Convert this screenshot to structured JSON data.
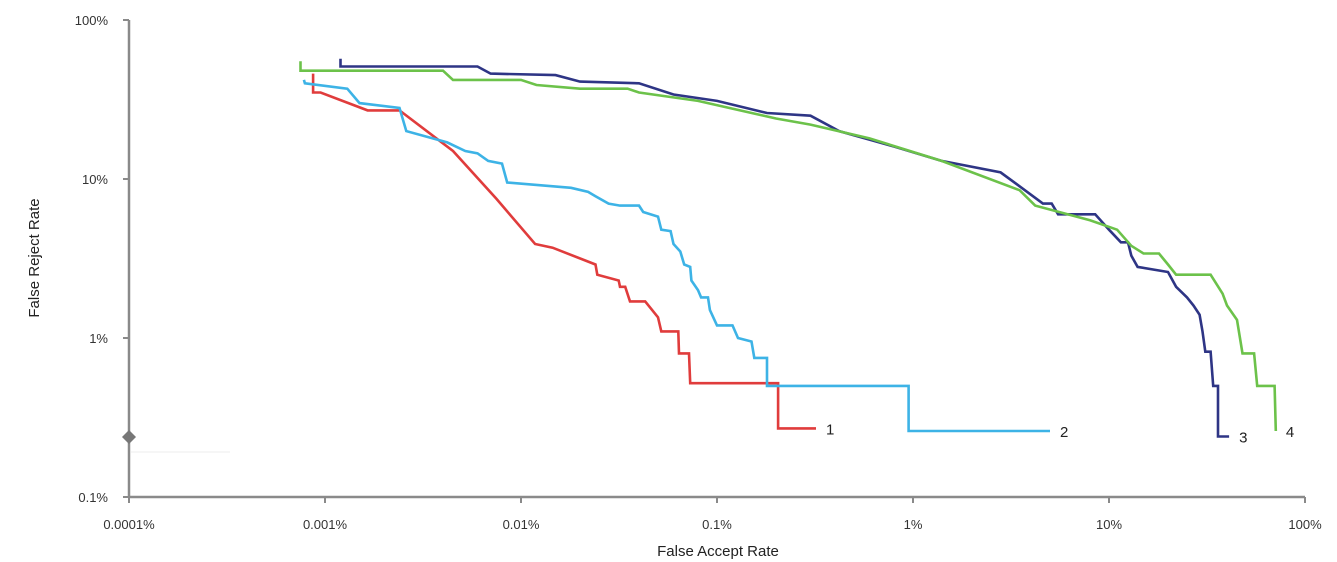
{
  "chart_data": {
    "type": "line",
    "xlabel": "False Accept Rate",
    "ylabel": "False Reject Rate",
    "xscale": "log",
    "yscale": "log",
    "xlim": [
      0.0001,
      100
    ],
    "ylim": [
      0.1,
      100
    ],
    "xticks": [
      {
        "value": 0.0001,
        "label": "0.0001%"
      },
      {
        "value": 0.001,
        "label": "0.001%"
      },
      {
        "value": 0.01,
        "label": "0.01%"
      },
      {
        "value": 0.1,
        "label": "0.1%"
      },
      {
        "value": 1,
        "label": "1%"
      },
      {
        "value": 10,
        "label": "10%"
      },
      {
        "value": 100,
        "label": "100%"
      }
    ],
    "yticks": [
      {
        "value": 0.1,
        "label": "0.1%"
      },
      {
        "value": 1,
        "label": "1%"
      },
      {
        "value": 10,
        "label": "10%"
      },
      {
        "value": 100,
        "label": "100%"
      }
    ],
    "grid": false,
    "series": [
      {
        "name": "1",
        "color": "#e03c3c",
        "points": [
          [
            0.00087,
            46
          ],
          [
            0.00087,
            35
          ],
          [
            0.00095,
            35
          ],
          [
            0.00165,
            27
          ],
          [
            0.0024,
            27
          ],
          [
            0.0045,
            15
          ],
          [
            0.0075,
            7.5
          ],
          [
            0.0118,
            3.9
          ],
          [
            0.0145,
            3.7
          ],
          [
            0.024,
            2.9
          ],
          [
            0.0245,
            2.5
          ],
          [
            0.0315,
            2.3
          ],
          [
            0.032,
            2.1
          ],
          [
            0.034,
            2.1
          ],
          [
            0.036,
            1.7
          ],
          [
            0.043,
            1.7
          ],
          [
            0.05,
            1.35
          ],
          [
            0.052,
            1.1
          ],
          [
            0.0635,
            1.1
          ],
          [
            0.064,
            0.8
          ],
          [
            0.072,
            0.8
          ],
          [
            0.073,
            0.52
          ],
          [
            0.165,
            0.52
          ],
          [
            0.205,
            0.52
          ],
          [
            0.205,
            0.27
          ],
          [
            0.32,
            0.27
          ]
        ]
      },
      {
        "name": "2",
        "color": "#3db3e6",
        "points": [
          [
            0.00078,
            42
          ],
          [
            0.00079,
            40
          ],
          [
            0.0013,
            37
          ],
          [
            0.0015,
            30
          ],
          [
            0.0024,
            28
          ],
          [
            0.0026,
            20
          ],
          [
            0.0042,
            17
          ],
          [
            0.0052,
            15
          ],
          [
            0.006,
            14.5
          ],
          [
            0.0068,
            13
          ],
          [
            0.008,
            12.5
          ],
          [
            0.0085,
            9.5
          ],
          [
            0.018,
            8.8
          ],
          [
            0.022,
            8.3
          ],
          [
            0.024,
            7.8
          ],
          [
            0.028,
            7.0
          ],
          [
            0.032,
            6.8
          ],
          [
            0.04,
            6.8
          ],
          [
            0.042,
            6.2
          ],
          [
            0.05,
            5.8
          ],
          [
            0.052,
            4.8
          ],
          [
            0.058,
            4.7
          ],
          [
            0.06,
            3.9
          ],
          [
            0.065,
            3.5
          ],
          [
            0.068,
            2.9
          ],
          [
            0.073,
            2.8
          ],
          [
            0.074,
            2.3
          ],
          [
            0.08,
            2.0
          ],
          [
            0.083,
            1.8
          ],
          [
            0.09,
            1.8
          ],
          [
            0.092,
            1.5
          ],
          [
            0.1,
            1.2
          ],
          [
            0.12,
            1.2
          ],
          [
            0.128,
            1.0
          ],
          [
            0.15,
            0.95
          ],
          [
            0.155,
            0.75
          ],
          [
            0.18,
            0.75
          ],
          [
            0.18,
            0.5
          ],
          [
            0.95,
            0.5
          ],
          [
            0.95,
            0.26
          ],
          [
            5.0,
            0.26
          ]
        ]
      },
      {
        "name": "3",
        "color": "#2e3585",
        "points": [
          [
            0.0012,
            57
          ],
          [
            0.0012,
            51
          ],
          [
            0.006,
            51
          ],
          [
            0.007,
            46
          ],
          [
            0.015,
            45
          ],
          [
            0.02,
            41
          ],
          [
            0.04,
            40
          ],
          [
            0.06,
            34
          ],
          [
            0.1,
            31
          ],
          [
            0.18,
            26
          ],
          [
            0.3,
            25
          ],
          [
            0.42,
            20
          ],
          [
            0.8,
            16
          ],
          [
            1.4,
            13
          ],
          [
            2.8,
            11
          ],
          [
            3.5,
            9
          ],
          [
            4.6,
            7
          ],
          [
            5.1,
            7
          ],
          [
            5.5,
            6
          ],
          [
            8.5,
            6
          ],
          [
            10,
            4.8
          ],
          [
            11.5,
            4
          ],
          [
            12.5,
            4
          ],
          [
            13,
            3.3
          ],
          [
            14,
            2.8
          ],
          [
            20,
            2.6
          ],
          [
            22,
            2.1
          ],
          [
            25,
            1.8
          ],
          [
            27,
            1.6
          ],
          [
            29,
            1.4
          ],
          [
            30,
            1.1
          ],
          [
            31,
            0.82
          ],
          [
            33,
            0.82
          ],
          [
            34,
            0.5
          ],
          [
            36,
            0.5
          ],
          [
            36,
            0.24
          ],
          [
            41,
            0.24
          ]
        ]
      },
      {
        "name": "4",
        "color": "#6cc24a",
        "points": [
          [
            0.00075,
            55
          ],
          [
            0.00075,
            48
          ],
          [
            0.004,
            48
          ],
          [
            0.0045,
            42
          ],
          [
            0.01,
            42
          ],
          [
            0.012,
            39
          ],
          [
            0.02,
            37
          ],
          [
            0.035,
            37
          ],
          [
            0.04,
            35
          ],
          [
            0.08,
            31
          ],
          [
            0.2,
            24
          ],
          [
            0.3,
            22
          ],
          [
            0.6,
            18
          ],
          [
            1.4,
            13
          ],
          [
            3.5,
            8.5
          ],
          [
            4.2,
            6.8
          ],
          [
            8,
            5.5
          ],
          [
            11,
            4.8
          ],
          [
            13,
            3.8
          ],
          [
            15,
            3.4
          ],
          [
            18,
            3.4
          ],
          [
            20,
            2.9
          ],
          [
            22,
            2.5
          ],
          [
            33,
            2.5
          ],
          [
            38,
            1.9
          ],
          [
            40,
            1.6
          ],
          [
            45,
            1.3
          ],
          [
            48,
            0.8
          ],
          [
            55,
            0.8
          ],
          [
            57,
            0.5
          ],
          [
            70,
            0.5
          ],
          [
            71,
            0.26
          ]
        ]
      }
    ]
  }
}
